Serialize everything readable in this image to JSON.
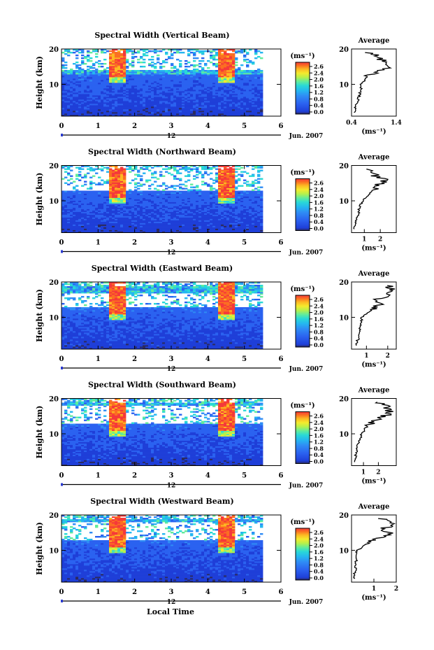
{
  "colorbar": {
    "unit": "(ms⁻¹)",
    "ticks": [
      "2.6",
      "2.4",
      "2.0",
      "1.6",
      "1.2",
      "0.8",
      "0.4",
      "0.0"
    ],
    "colors": [
      "#2b2a5e",
      "#1f3fd8",
      "#2b62f0",
      "#2f8cf5",
      "#25b6f0",
      "#2ad9d6",
      "#63ec9a",
      "#b8f04a",
      "#f5ea2d",
      "#fdb822",
      "#fb6e22",
      "#f5393a"
    ]
  },
  "x_axis": {
    "ticks": [
      "0",
      "1",
      "2",
      "3",
      "4",
      "5",
      "6"
    ],
    "date_day": "12",
    "date_label": "Jun. 2007",
    "label": "Local Time"
  },
  "y_axis": {
    "label": "Height (km)",
    "ticks": [
      "10",
      "20"
    ]
  },
  "average_title": "Average",
  "average_unit": "(ms⁻¹)",
  "panels": [
    {
      "title": "Spectral Width (Vertical Beam)",
      "avg_ticks": [
        "0.4",
        "1.4"
      ],
      "avg_tick_vals": [
        0.4,
        1.4
      ],
      "avg_range": [
        0.4,
        1.4
      ]
    },
    {
      "title": "Spectral Width (Northward Beam)",
      "avg_ticks": [
        "1",
        "2"
      ],
      "avg_tick_vals": [
        1,
        2
      ],
      "avg_range": [
        0.2,
        3.0
      ]
    },
    {
      "title": "Spectral Width (Eastward Beam)",
      "avg_ticks": [
        "1",
        "2"
      ],
      "avg_tick_vals": [
        1,
        2
      ],
      "avg_range": [
        0.3,
        2.4
      ]
    },
    {
      "title": "Spectral Width (Southward Beam)",
      "avg_ticks": [
        "1",
        "2"
      ],
      "avg_tick_vals": [
        1,
        2
      ],
      "avg_range": [
        0.2,
        3.2
      ]
    },
    {
      "title": "Spectral Width (Westward Beam)",
      "avg_ticks": [
        "1",
        "2"
      ],
      "avg_tick_vals": [
        1,
        2
      ],
      "avg_range": [
        0.0,
        2.0
      ]
    }
  ],
  "chart_data": [
    {
      "type": "heatmap",
      "title": "Spectral Width (Vertical Beam)",
      "xlabel": "",
      "ylabel": "Height (km)",
      "xlim": [
        0,
        6
      ],
      "ylim": [
        1,
        20
      ],
      "zlim": [
        0,
        2.6
      ],
      "colorbar_label": "(ms⁻¹)",
      "features": {
        "high_width_columns_hours": [
          1.5,
          4.5
        ],
        "gap_band_km": [
          14,
          19
        ]
      }
    },
    {
      "type": "heatmap",
      "title": "Spectral Width (Northward Beam)",
      "xlabel": "",
      "ylabel": "Height (km)",
      "xlim": [
        0,
        6
      ],
      "ylim": [
        1,
        20
      ],
      "zlim": [
        0,
        2.6
      ],
      "colorbar_label": "(ms⁻¹)",
      "features": {
        "high_width_columns_hours": [
          1.5,
          4.5
        ],
        "gap_band_km": [
          13,
          19
        ]
      }
    },
    {
      "type": "heatmap",
      "title": "Spectral Width (Eastward Beam)",
      "xlabel": "",
      "ylabel": "Height (km)",
      "xlim": [
        0,
        6
      ],
      "ylim": [
        1,
        20
      ],
      "zlim": [
        0,
        2.6
      ],
      "colorbar_label": "(ms⁻¹)",
      "features": {
        "high_width_columns_hours": [
          1.5,
          4.5
        ],
        "gap_band_km": [
          13,
          17
        ]
      }
    },
    {
      "type": "heatmap",
      "title": "Spectral Width (Southward Beam)",
      "xlabel": "",
      "ylabel": "Height (km)",
      "xlim": [
        0,
        6
      ],
      "ylim": [
        1,
        20
      ],
      "zlim": [
        0,
        2.6
      ],
      "colorbar_label": "(ms⁻¹)",
      "features": {
        "high_width_columns_hours": [
          1.5,
          4.5
        ],
        "gap_band_km": [
          13,
          18
        ]
      }
    },
    {
      "type": "heatmap",
      "title": "Spectral Width (Westward Beam)",
      "xlabel": "Local Time",
      "ylabel": "Height (km)",
      "xlim": [
        0,
        6
      ],
      "ylim": [
        1,
        20
      ],
      "zlim": [
        0,
        2.6
      ],
      "colorbar_label": "(ms⁻¹)",
      "features": {
        "high_width_columns_hours": [
          1.5,
          4.5
        ],
        "gap_band_km": [
          13,
          18
        ]
      }
    },
    {
      "type": "line",
      "title": "Average",
      "beam": "Vertical",
      "xlabel": "(ms⁻¹)",
      "ylabel": "Height (km)",
      "xlim": [
        0.4,
        1.4
      ],
      "ylim": [
        1,
        20
      ],
      "series": [
        {
          "x": [
            0.45,
            0.5,
            0.55,
            0.6,
            0.62,
            0.75,
            0.85,
            1.1,
            1.25,
            1.2,
            1.05,
            0.95,
            0.8
          ],
          "y": [
            2,
            4,
            6,
            8,
            10,
            12,
            13,
            14,
            15,
            16,
            17,
            18,
            19
          ]
        }
      ]
    },
    {
      "type": "line",
      "title": "Average",
      "beam": "Northward",
      "xlabel": "(ms⁻¹)",
      "ylabel": "Height (km)",
      "xlim": [
        0.2,
        3.0
      ],
      "ylim": [
        1,
        20
      ],
      "series": [
        {
          "x": [
            0.4,
            0.5,
            0.6,
            0.7,
            0.9,
            1.3,
            1.6,
            1.8,
            2.0,
            2.4,
            1.7,
            1.2
          ],
          "y": [
            2,
            4,
            6,
            8,
            10,
            12,
            13,
            14,
            15,
            16,
            17,
            19
          ]
        }
      ]
    },
    {
      "type": "line",
      "title": "Average",
      "beam": "Eastward",
      "xlabel": "(ms⁻¹)",
      "ylabel": "Height (km)",
      "xlim": [
        0.3,
        2.4
      ],
      "ylim": [
        1,
        20
      ],
      "series": [
        {
          "x": [
            0.55,
            0.6,
            0.65,
            0.7,
            0.8,
            1.0,
            1.4,
            1.7,
            1.5,
            1.9,
            2.2,
            2.0
          ],
          "y": [
            2,
            4,
            6,
            8,
            10,
            11,
            13,
            14,
            15,
            16,
            18,
            19
          ]
        }
      ]
    },
    {
      "type": "line",
      "title": "Average",
      "beam": "Southward",
      "xlabel": "(ms⁻¹)",
      "ylabel": "Height (km)",
      "xlim": [
        0.2,
        3.2
      ],
      "ylim": [
        1,
        20
      ],
      "series": [
        {
          "x": [
            0.45,
            0.5,
            0.6,
            0.7,
            0.9,
            1.2,
            1.5,
            1.9,
            2.4,
            2.8,
            2.5,
            1.8
          ],
          "y": [
            2,
            4,
            6,
            8,
            10,
            12,
            13,
            14,
            15,
            16,
            18,
            19
          ]
        }
      ]
    },
    {
      "type": "line",
      "title": "Average",
      "beam": "Westward",
      "xlabel": "(ms⁻¹)",
      "ylabel": "Height (km)",
      "xlim": [
        0.0,
        2.0
      ],
      "ylim": [
        1,
        20
      ],
      "series": [
        {
          "x": [
            0.15,
            0.15,
            0.2,
            0.2,
            0.25,
            0.5,
            1.0,
            1.5,
            1.8,
            1.2,
            1.9,
            1.4
          ],
          "y": [
            2,
            4,
            6,
            8,
            10,
            11,
            13,
            14,
            15,
            16,
            17,
            19
          ]
        }
      ]
    }
  ]
}
